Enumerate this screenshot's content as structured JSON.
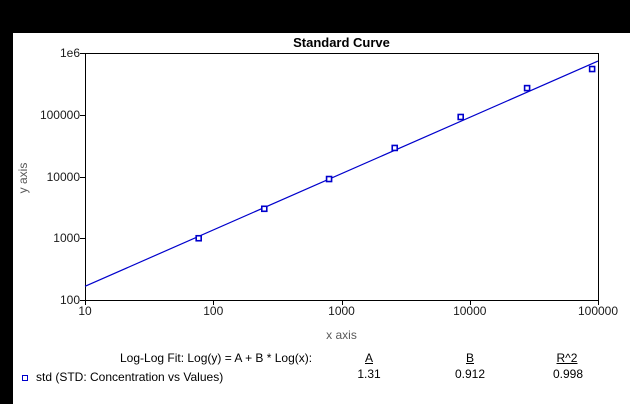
{
  "chart": {
    "title": "Standard Curve",
    "x_axis_label": "x axis",
    "y_axis_label": "y axis"
  },
  "chart_data": {
    "type": "scatter",
    "title": "Standard Curve",
    "xlabel": "x axis",
    "ylabel": "y axis",
    "x_scale": "log",
    "y_scale": "log",
    "xlim": [
      10,
      100000
    ],
    "ylim": [
      100,
      1000000
    ],
    "grid": false,
    "x_ticks": [
      [
        10,
        "10"
      ],
      [
        100,
        "100"
      ],
      [
        1000,
        "1000"
      ],
      [
        10000,
        "10000"
      ],
      [
        100000,
        "100000"
      ]
    ],
    "y_ticks": [
      [
        100,
        "100"
      ],
      [
        1000,
        "1000"
      ],
      [
        10000,
        "10000"
      ],
      [
        100000,
        "100000"
      ],
      [
        1000000,
        "1e6"
      ]
    ],
    "series": [
      {
        "name": "std",
        "marker": "open-square",
        "color": "#0000CC",
        "points": [
          [
            77,
            1000
          ],
          [
            250,
            3000
          ],
          [
            800,
            9100
          ],
          [
            2600,
            29000
          ],
          [
            8500,
            92000
          ],
          [
            28000,
            270000
          ],
          [
            90000,
            550000
          ]
        ]
      }
    ],
    "fit": {
      "type": "log-log-line",
      "equation": "Log(y) = A + B * Log(x)",
      "A": 1.31,
      "B": 0.912,
      "R2": 0.998,
      "color": "#0000CC"
    }
  },
  "annotation": {
    "fit_label": "Log-Log Fit: Log(y) = A + B * Log(x):",
    "col_A_header": "A",
    "col_A_value": "1.31",
    "col_B_header": "B",
    "col_B_value": "0.912",
    "col_R2_header": "R^2",
    "col_R2_value": "0.998"
  },
  "legend": {
    "label": "std (STD: Concentration vs Values)",
    "marker_color": "#0000CC"
  }
}
